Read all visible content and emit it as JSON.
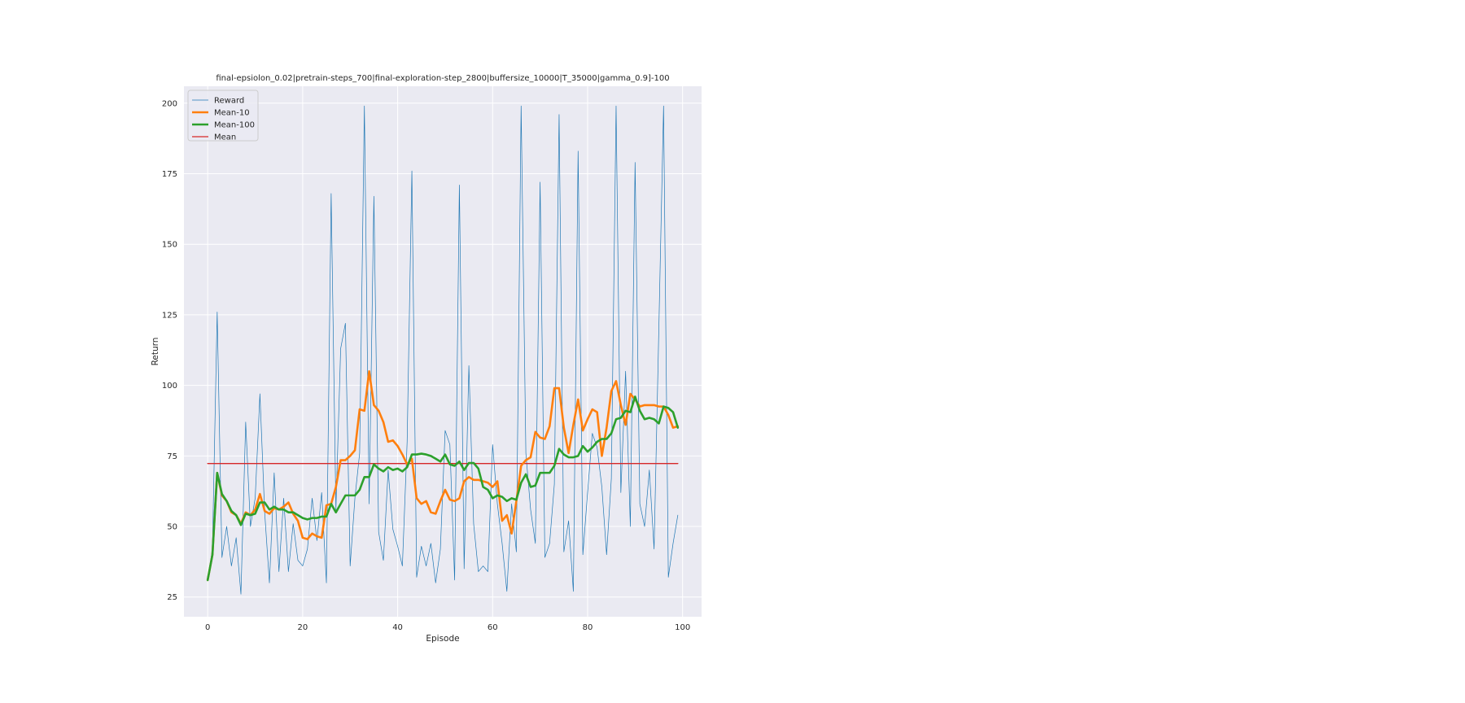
{
  "chart_data": {
    "type": "line",
    "title": "final-epsiolon_0.02|pretrain-steps_700|final-exploration-step_2800|buffersize_10000|T_35000|gamma_0.9]-100",
    "xlabel": "Episode",
    "ylabel": "Return",
    "xlim": [
      -5,
      104
    ],
    "ylim": [
      18,
      206
    ],
    "xticks": [
      0,
      20,
      40,
      60,
      80,
      100
    ],
    "yticks": [
      25,
      50,
      75,
      100,
      125,
      150,
      175,
      200
    ],
    "grid": true,
    "legend_position": "top-left",
    "series": [
      {
        "name": "Reward",
        "color": "#1f77b4",
        "values": [
          31,
          42,
          126,
          39,
          50,
          36,
          46,
          26,
          87,
          50,
          60,
          97,
          55,
          30,
          69,
          34,
          60,
          34,
          51,
          38,
          36,
          42,
          60,
          45,
          62,
          30,
          168,
          56,
          113,
          122,
          36,
          60,
          76,
          199,
          58,
          167,
          48,
          38,
          70,
          49,
          43,
          36,
          80,
          176,
          32,
          43,
          36,
          44,
          30,
          42,
          84,
          79,
          31,
          171,
          35,
          107,
          51,
          34,
          36,
          34,
          79,
          58,
          44,
          27,
          58,
          41,
          199,
          76,
          56,
          44,
          172,
          39,
          44,
          65,
          196,
          41,
          52,
          27,
          183,
          40,
          62,
          83,
          78,
          64,
          40,
          67,
          199,
          62,
          105,
          50,
          179,
          58,
          50,
          70,
          42,
          120,
          199,
          32,
          44,
          54
        ]
      },
      {
        "name": "Mean-10",
        "color": "#ff7f0e",
        "values": [
          31,
          40,
          69,
          61,
          59,
          55,
          54,
          51,
          55,
          54,
          56,
          61.5,
          55.5,
          54.5,
          56.5,
          56,
          57,
          58.5,
          54.5,
          52,
          46,
          45.5,
          47.5,
          46.5,
          46,
          57.5,
          58,
          64,
          73.5,
          73.5,
          75,
          77,
          91.5,
          91,
          105,
          93,
          91,
          87,
          80,
          80.5,
          78.5,
          75.5,
          72,
          74,
          60,
          58,
          59,
          55,
          54.5,
          59,
          63,
          59.5,
          59,
          60,
          66,
          67.5,
          66.5,
          66.5,
          66,
          65.5,
          64,
          66,
          52,
          54,
          47.5,
          59,
          71.5,
          73.5,
          74.5,
          83.5,
          81.5,
          81,
          85.5,
          99,
          99,
          85,
          76,
          86,
          95,
          84,
          88,
          91.5,
          90.5,
          75,
          85,
          98,
          101.5,
          93,
          86,
          97,
          95,
          92.5,
          93,
          93,
          93,
          92.5,
          92.5,
          89.5,
          85,
          85.5
        ]
      },
      {
        "name": "Mean-100",
        "color": "#2ca02c",
        "values": [
          31,
          40,
          69,
          61.5,
          59,
          55.5,
          54,
          50.5,
          54.5,
          54,
          54.5,
          58.5,
          58.5,
          56,
          57,
          56,
          56,
          55,
          55,
          54,
          53,
          52.5,
          53,
          53,
          53.5,
          53.5,
          58,
          55,
          58,
          61,
          61,
          61,
          63,
          67.5,
          67.5,
          72,
          70.5,
          69.5,
          71,
          70,
          70.5,
          69.5,
          71,
          75.5,
          75.5,
          75.8,
          75.5,
          75,
          74,
          73,
          75.5,
          72,
          71.5,
          73,
          70,
          72.5,
          72.5,
          70.5,
          64,
          63,
          60,
          61,
          60.5,
          59,
          60,
          59.5,
          65.5,
          68.5,
          64,
          64.5,
          69,
          69,
          69,
          71.5,
          77.5,
          75.5,
          74.5,
          74.5,
          75,
          78.5,
          76.5,
          78,
          80,
          81,
          81,
          83,
          88,
          88.5,
          91,
          90.5,
          96,
          91,
          88,
          88.5,
          88,
          86.5,
          92.5,
          92,
          90.5,
          85
        ]
      },
      {
        "name": "Mean",
        "color": "#d62728",
        "values": [
          72.3,
          72.3
        ]
      }
    ]
  }
}
